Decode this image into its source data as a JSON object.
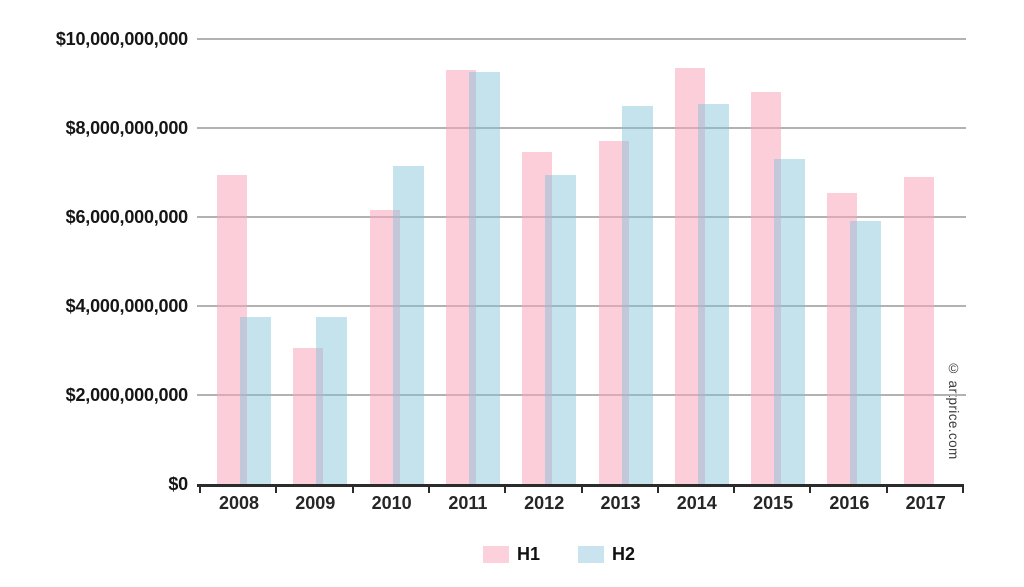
{
  "watermark": "© artprice.com",
  "colors": {
    "h1_fill": "rgba(249,166,187,0.55)",
    "h1_legend": "#FCD1DB",
    "h2_fill": "rgba(125,192,216,0.45)",
    "h2_legend": "#C9E4EE",
    "gridline": "#b2b2b2",
    "axis": "#2b2b2b"
  },
  "legend": {
    "items": [
      {
        "label": "H1",
        "color": "#FCD1DB"
      },
      {
        "label": "H2",
        "color": "#C9E4EE"
      }
    ]
  },
  "chart_data": {
    "type": "bar",
    "title": "",
    "xlabel": "",
    "ylabel": "",
    "categories": [
      "2008",
      "2009",
      "2010",
      "2011",
      "2012",
      "2013",
      "2014",
      "2015",
      "2016",
      "2017"
    ],
    "series": [
      {
        "name": "H1",
        "fill": "rgba(249,166,187,0.55)",
        "values": [
          6950000000,
          3050000000,
          6150000000,
          9300000000,
          7450000000,
          7700000000,
          9350000000,
          8800000000,
          6550000000,
          6900000000
        ]
      },
      {
        "name": "H2",
        "fill": "rgba(125,192,216,0.45)",
        "values": [
          3750000000,
          3750000000,
          7150000000,
          9250000000,
          6950000000,
          8500000000,
          8550000000,
          7300000000,
          5900000000,
          null
        ]
      }
    ],
    "ylim": [
      0,
      10000000000
    ],
    "yticks": [
      {
        "value": 0,
        "label": "$0"
      },
      {
        "value": 2000000000,
        "label": "$2,000,000,000"
      },
      {
        "value": 4000000000,
        "label": "$4,000,000,000"
      },
      {
        "value": 6000000000,
        "label": "$6,000,000,000"
      },
      {
        "value": 8000000000,
        "label": "$8,000,000,000"
      },
      {
        "value": 10000000000,
        "label": "$10,000,000,000"
      }
    ],
    "grid": "horizontal",
    "legend_position": "bottom"
  }
}
